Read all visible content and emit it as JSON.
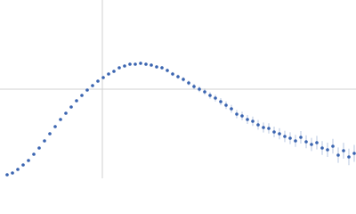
{
  "chart_data": {
    "type": "scatter",
    "color": "#3a64b0",
    "grid": true,
    "xlim": [
      0,
      400
    ],
    "ylim": [
      0,
      200
    ],
    "xticks": [
      115
    ],
    "yticks": [
      100
    ],
    "series": [
      {
        "x": [
          8,
          14,
          20,
          26,
          32,
          38,
          44,
          50,
          56,
          62,
          68,
          74,
          80,
          86,
          92,
          98,
          104,
          110,
          116,
          122,
          128,
          134,
          140,
          146,
          152,
          158,
          164,
          170,
          176,
          182,
          188,
          194,
          200,
          206,
          212,
          218,
          224,
          230,
          236,
          242,
          248,
          254,
          260,
          266,
          272,
          278,
          284,
          290,
          296,
          302,
          308,
          314,
          320,
          326,
          332,
          338,
          344,
          350,
          356,
          362,
          368,
          374,
          380,
          386,
          392,
          398
        ],
        "values": [
          4,
          6,
          10,
          15,
          20,
          27,
          34,
          42,
          50,
          58,
          66,
          73,
          80,
          87,
          93,
          99,
          104,
          109,
          113,
          117,
          120,
          124,
          126,
          128,
          128,
          129,
          128,
          127,
          125,
          124,
          121,
          117,
          114,
          111,
          107,
          103,
          100,
          97,
          93,
          90,
          86,
          82,
          78,
          72,
          70,
          66,
          64,
          60,
          57,
          56,
          52,
          50,
          47,
          45,
          42,
          46,
          41,
          38,
          40,
          34,
          32,
          36,
          26,
          31,
          24,
          28
        ],
        "errors": [
          0.5,
          0.5,
          0.5,
          0.5,
          0.5,
          0.6,
          0.6,
          0.6,
          0.7,
          0.7,
          0.7,
          0.8,
          0.8,
          0.8,
          0.9,
          0.9,
          1,
          1,
          1,
          1.1,
          1.2,
          1.2,
          1.3,
          1.4,
          1.5,
          1.6,
          1.7,
          1.8,
          1.9,
          2,
          2.1,
          2.2,
          2.4,
          2.6,
          2.8,
          3,
          3.2,
          3.4,
          3.6,
          3.8,
          4,
          4.2,
          4.4,
          4.6,
          4.8,
          5,
          5.2,
          5.4,
          5.6,
          5.8,
          6,
          6.2,
          6.4,
          6.6,
          6.8,
          7,
          7.2,
          7.4,
          7.6,
          7.8,
          8,
          8.3,
          8.6,
          8.9,
          9.2,
          9.5
        ]
      }
    ]
  }
}
